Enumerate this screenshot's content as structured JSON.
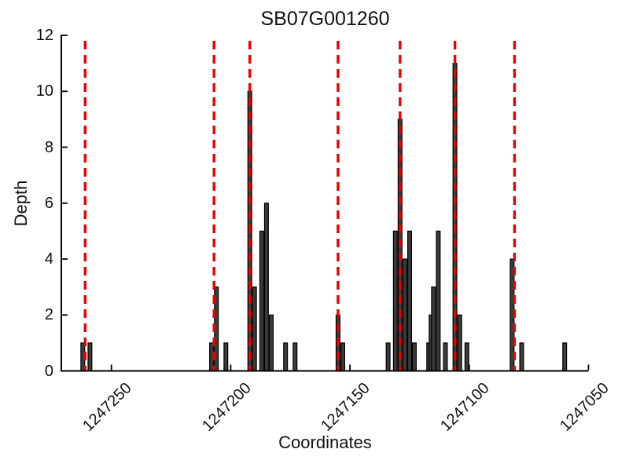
{
  "chart_data": {
    "type": "bar",
    "title": "SB07G001260",
    "xlabel": "Coordinates",
    "ylabel": "Depth",
    "x_axis_reversed": true,
    "xlim": [
      1247271,
      1247050
    ],
    "ylim": [
      0,
      12
    ],
    "x_ticks": [
      1247250,
      1247200,
      1247150,
      1247100,
      1247050
    ],
    "y_ticks": [
      0,
      2,
      4,
      6,
      8,
      10,
      12
    ],
    "grid": false,
    "legend": false,
    "bar_color": "#3c3c3c",
    "bar_edge_color": "#000000",
    "axis_color": "#000000",
    "bars": [
      {
        "x": 1247262,
        "depth": 1
      },
      {
        "x": 1247259,
        "depth": 1
      },
      {
        "x": 1247208,
        "depth": 1
      },
      {
        "x": 1247206,
        "depth": 3
      },
      {
        "x": 1247202,
        "depth": 1
      },
      {
        "x": 1247192,
        "depth": 10
      },
      {
        "x": 1247190,
        "depth": 3
      },
      {
        "x": 1247187,
        "depth": 5
      },
      {
        "x": 1247185,
        "depth": 6
      },
      {
        "x": 1247183,
        "depth": 2
      },
      {
        "x": 1247177,
        "depth": 1
      },
      {
        "x": 1247173,
        "depth": 1
      },
      {
        "x": 1247155,
        "depth": 2
      },
      {
        "x": 1247153,
        "depth": 1
      },
      {
        "x": 1247134,
        "depth": 1
      },
      {
        "x": 1247131,
        "depth": 5
      },
      {
        "x": 1247129,
        "depth": 9
      },
      {
        "x": 1247127,
        "depth": 4
      },
      {
        "x": 1247125,
        "depth": 5
      },
      {
        "x": 1247123,
        "depth": 1
      },
      {
        "x": 1247117,
        "depth": 1
      },
      {
        "x": 1247116,
        "depth": 2
      },
      {
        "x": 1247115,
        "depth": 3
      },
      {
        "x": 1247113,
        "depth": 5
      },
      {
        "x": 1247110,
        "depth": 1
      },
      {
        "x": 1247106,
        "depth": 11
      },
      {
        "x": 1247104,
        "depth": 2
      },
      {
        "x": 1247101,
        "depth": 1
      },
      {
        "x": 1247082,
        "depth": 4
      },
      {
        "x": 1247078,
        "depth": 1
      },
      {
        "x": 1247060,
        "depth": 1
      }
    ],
    "marker_lines": {
      "style": "dashed",
      "color": "#ee0000",
      "positions": [
        1247261,
        1247207,
        1247192,
        1247155,
        1247129,
        1247106,
        1247081
      ]
    }
  }
}
